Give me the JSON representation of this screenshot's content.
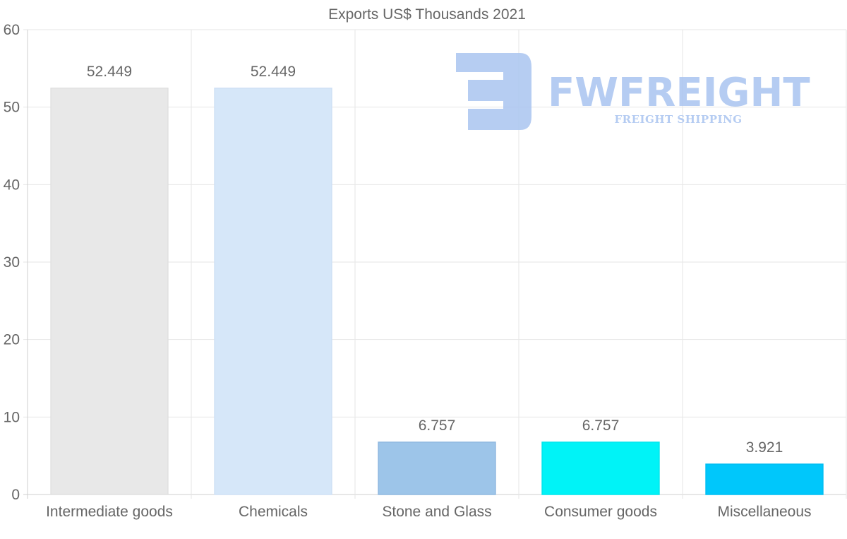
{
  "chart_data": {
    "type": "bar",
    "title": "Exports US$ Thousands 2021",
    "categories": [
      "Intermediate goods",
      "Chemicals",
      "Stone and Glass",
      "Consumer goods",
      "Miscellaneous"
    ],
    "values": [
      52.449,
      52.449,
      6.757,
      6.757,
      3.921
    ],
    "data_labels": [
      "52.449",
      "52.449",
      "6.757",
      "6.757",
      "3.921"
    ],
    "colors": [
      "#e8e8e8",
      "#d6e7f9",
      "#9dc5e9",
      "#00f3f7",
      "#00c7fb"
    ],
    "border_colors": [
      "#e0e0e0",
      "#cfe0f5",
      "#8fb8e0",
      "#00e6ec",
      "#00bdf2"
    ],
    "xlabel": "",
    "ylabel": "",
    "ylim": [
      0,
      60
    ],
    "yticks": [
      "0",
      "10",
      "20",
      "30",
      "40",
      "50",
      "60"
    ],
    "grid": true
  },
  "watermark": {
    "name": "FWFREIGHT",
    "tagline": "FREIGHT SHIPPING",
    "color": "#a9c4f0"
  }
}
